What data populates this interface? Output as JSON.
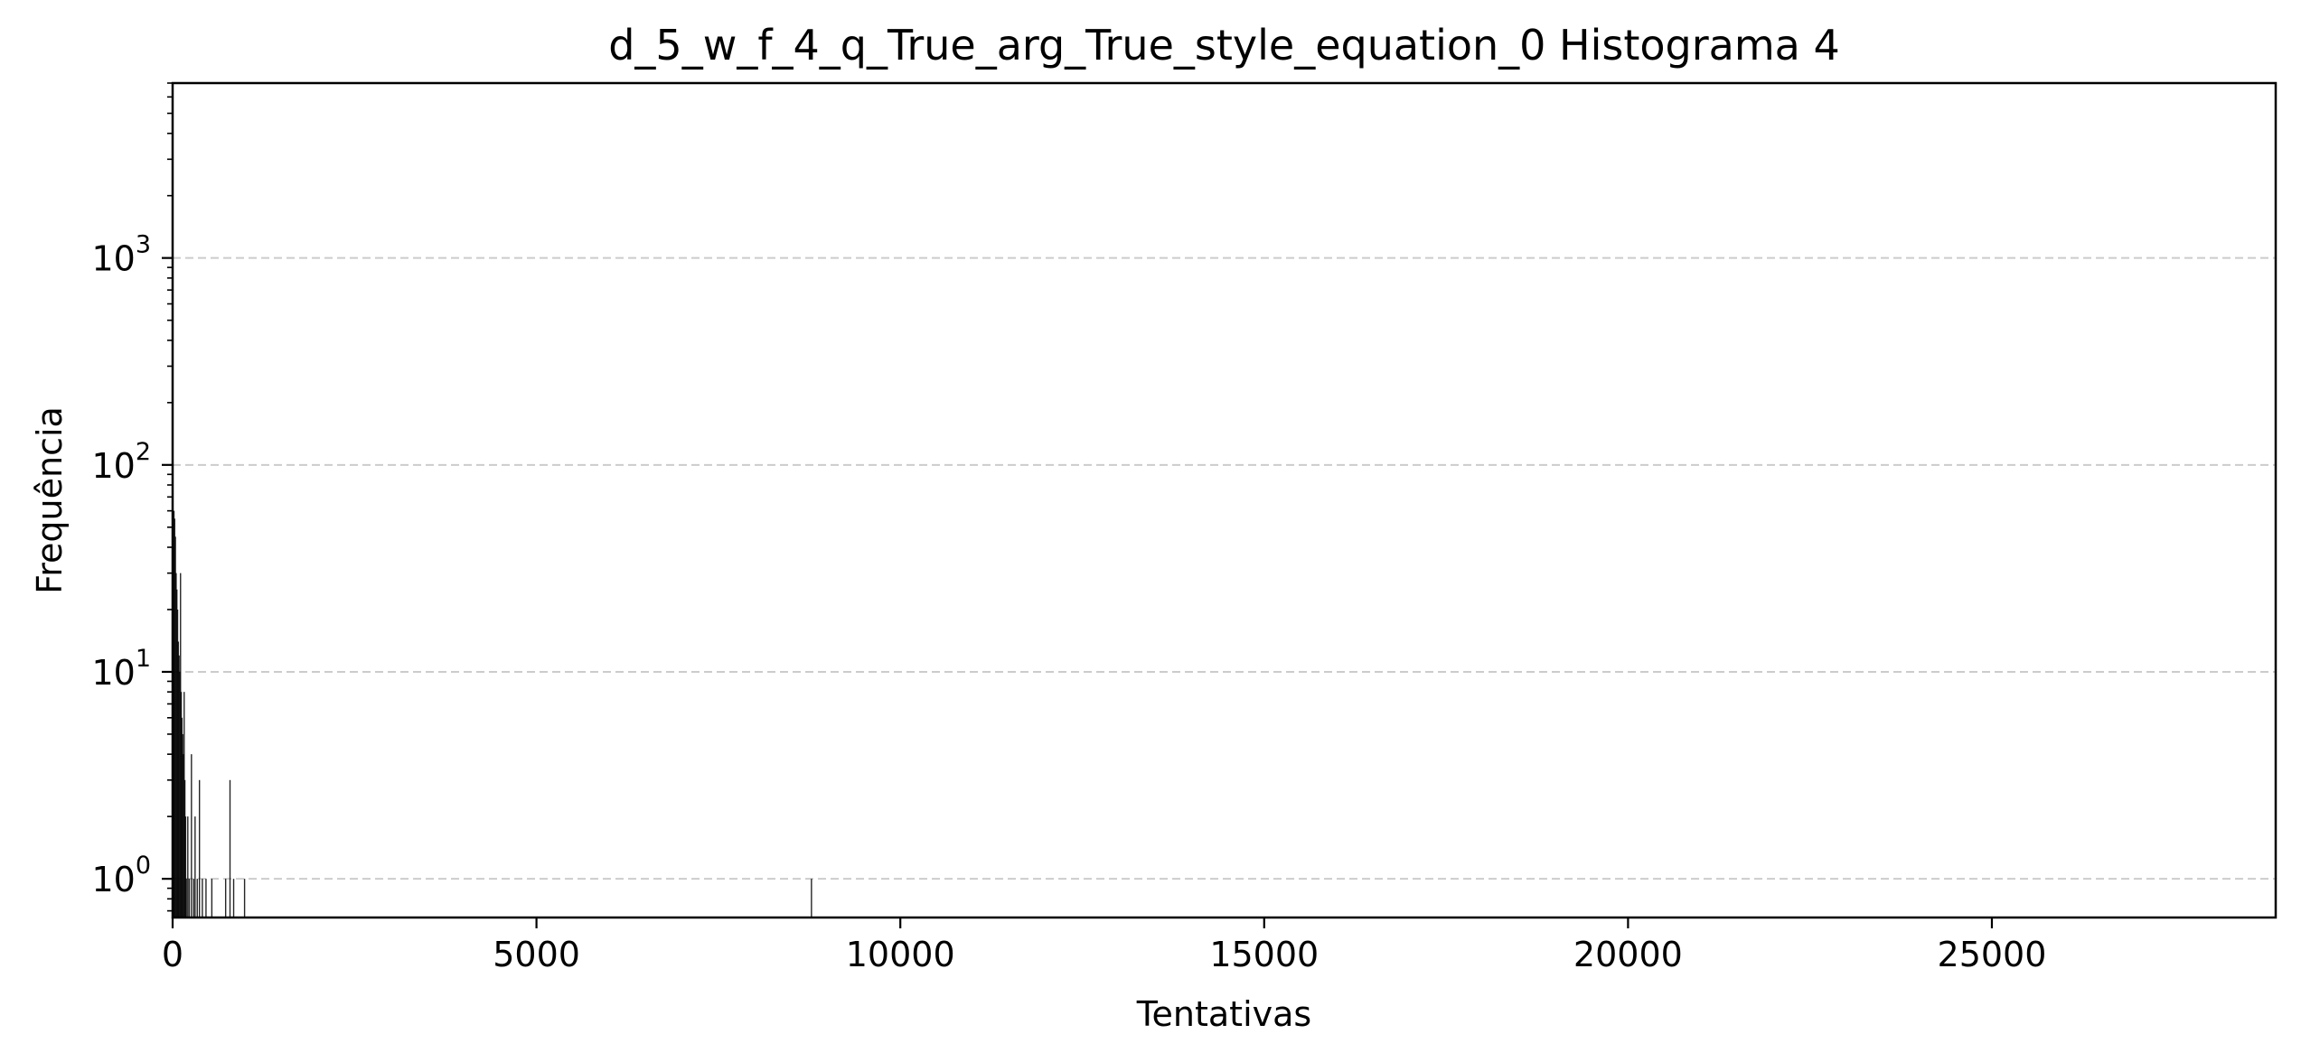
{
  "chart_data": {
    "type": "bar",
    "title": "d_5_w_f_4_q_True_arg_True_style_equation_0 Histograma 4",
    "xlabel": "Tentativas",
    "ylabel": "Frequência",
    "y_scale": "log",
    "xlim": [
      0,
      28900
    ],
    "ylim": [
      0.65,
      7000
    ],
    "grid": "y-major-dashed",
    "legend": "none",
    "bar_color": "#000000",
    "grid_color": "#cccccc",
    "x_ticks": [
      {
        "value": 0,
        "label": "0"
      },
      {
        "value": 5000,
        "label": "5000"
      },
      {
        "value": 10000,
        "label": "10000"
      },
      {
        "value": 15000,
        "label": "15000"
      },
      {
        "value": 20000,
        "label": "20000"
      },
      {
        "value": 25000,
        "label": "25000"
      }
    ],
    "y_ticks": [
      {
        "value": 1,
        "base": "10",
        "exp": "0"
      },
      {
        "value": 10,
        "base": "10",
        "exp": "1"
      },
      {
        "value": 100,
        "base": "10",
        "exp": "2"
      },
      {
        "value": 1000,
        "base": "10",
        "exp": "3"
      }
    ],
    "bin_width": 10,
    "bars": [
      {
        "x": 5,
        "y": 40
      },
      {
        "x": 15,
        "y": 60
      },
      {
        "x": 25,
        "y": 55
      },
      {
        "x": 35,
        "y": 45
      },
      {
        "x": 45,
        "y": 30
      },
      {
        "x": 55,
        "y": 25
      },
      {
        "x": 65,
        "y": 20
      },
      {
        "x": 75,
        "y": 14
      },
      {
        "x": 85,
        "y": 12
      },
      {
        "x": 95,
        "y": 10
      },
      {
        "x": 105,
        "y": 30
      },
      {
        "x": 115,
        "y": 8
      },
      {
        "x": 125,
        "y": 6
      },
      {
        "x": 135,
        "y": 5
      },
      {
        "x": 145,
        "y": 4
      },
      {
        "x": 155,
        "y": 8
      },
      {
        "x": 165,
        "y": 3
      },
      {
        "x": 175,
        "y": 2
      },
      {
        "x": 185,
        "y": 1
      },
      {
        "x": 205,
        "y": 2
      },
      {
        "x": 225,
        "y": 1
      },
      {
        "x": 255,
        "y": 4
      },
      {
        "x": 285,
        "y": 1
      },
      {
        "x": 305,
        "y": 2
      },
      {
        "x": 335,
        "y": 1
      },
      {
        "x": 365,
        "y": 3
      },
      {
        "x": 405,
        "y": 1
      },
      {
        "x": 455,
        "y": 1
      },
      {
        "x": 535,
        "y": 1
      },
      {
        "x": 725,
        "y": 1
      },
      {
        "x": 785,
        "y": 3
      },
      {
        "x": 835,
        "y": 1
      },
      {
        "x": 985,
        "y": 1
      },
      {
        "x": 8775,
        "y": 1
      }
    ]
  }
}
